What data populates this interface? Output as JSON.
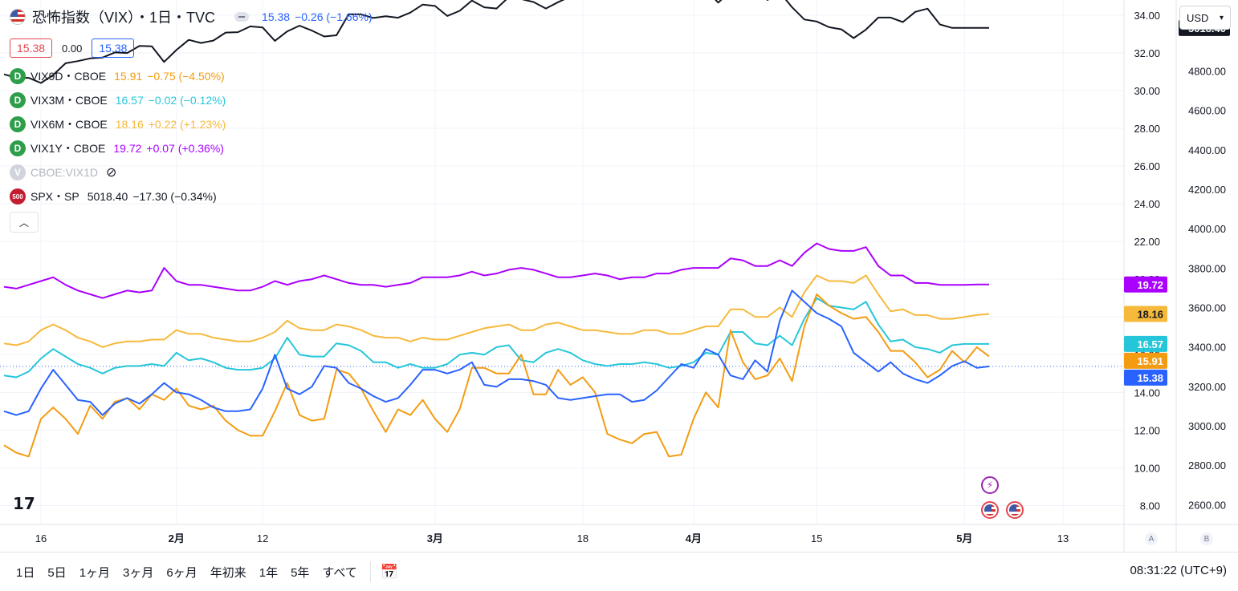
{
  "header": {
    "title": "恐怖指数（VIX）・1日・TVC",
    "price": "15.38",
    "change": "−0.26 (−1.66%)",
    "bid": "15.38",
    "spread": "0.00",
    "ask": "15.38"
  },
  "legend": [
    {
      "symbol": "VIX9D・CBOE",
      "value": "15.91",
      "change": "−0.75 (−4.50%)",
      "color": "#f39c12",
      "icon": "D"
    },
    {
      "symbol": "VIX3M・CBOE",
      "value": "16.57",
      "change": "−0.02 (−0.12%)",
      "color": "#26c6da",
      "icon": "D"
    },
    {
      "symbol": "VIX6M・CBOE",
      "value": "18.16",
      "change": "+0.22 (+1.23%)",
      "color": "#f6b93b",
      "icon": "D"
    },
    {
      "symbol": "VIX1Y・CBOE",
      "value": "19.72",
      "change": "+0.07 (+0.36%)",
      "color": "#aa00ff",
      "icon": "D"
    },
    {
      "symbol": "CBOE:VIX1D",
      "value": "",
      "change": "",
      "color": "#b2b5be",
      "icon": "V"
    },
    {
      "symbol": "SPX・SP",
      "value": "5018.40",
      "change": "−17.30 (−0.34%)",
      "color": "#131722",
      "icon": "500"
    }
  ],
  "currency": "USD",
  "colors": {
    "vix": "#2962ff",
    "vix9d": "#f39c12",
    "vix3m": "#26c6da",
    "vix6m": "#f6b93b",
    "vix1y": "#aa00ff",
    "spx": "#131722"
  },
  "chart_data": {
    "type": "line",
    "x": [
      "1/12",
      "1/15",
      "1/16",
      "1/17",
      "1/18",
      "1/19",
      "1/22",
      "1/23",
      "1/24",
      "1/25",
      "1/26",
      "1/29",
      "1/30",
      "1/31",
      "2/1",
      "2/2",
      "2/5",
      "2/6",
      "2/7",
      "2/8",
      "2/9",
      "2/12",
      "2/13",
      "2/14",
      "2/15",
      "2/16",
      "2/19",
      "2/20",
      "2/21",
      "2/22",
      "2/23",
      "2/26",
      "2/27",
      "2/28",
      "2/29",
      "3/1",
      "3/4",
      "3/5",
      "3/6",
      "3/7",
      "3/8",
      "3/11",
      "3/12",
      "3/13",
      "3/14",
      "3/15",
      "3/18",
      "3/19",
      "3/20",
      "3/21",
      "3/22",
      "3/25",
      "3/26",
      "3/27",
      "3/28",
      "3/29",
      "4/1",
      "4/2",
      "4/3",
      "4/4",
      "4/5",
      "4/8",
      "4/9",
      "4/10",
      "4/11",
      "4/12",
      "4/15",
      "4/16",
      "4/17",
      "4/18",
      "4/19",
      "4/22",
      "4/23",
      "4/24",
      "4/25",
      "4/26",
      "4/29",
      "4/30",
      "5/1",
      "5/2",
      "5/3"
    ],
    "x_ticks": [
      "16",
      "2月",
      "12",
      "3月",
      "18",
      "4月",
      "15",
      "5月",
      "13"
    ],
    "y_left_ticks": [
      "8.00",
      "10.00",
      "12.00",
      "14.00",
      "16.00",
      "18.00",
      "20.00",
      "22.00",
      "24.00",
      "26.00",
      "28.00",
      "30.00",
      "32.00",
      "34.00"
    ],
    "y_left_range": [
      7.0,
      34.8
    ],
    "y_right_ticks": [
      "2600.00",
      "2800.00",
      "3000.00",
      "3200.00",
      "3400.00",
      "3600.00",
      "3800.00",
      "4000.00",
      "4200.00",
      "4400.00",
      "4600.00",
      "4800.00",
      "5000.00"
    ],
    "y_right_range": [
      2500,
      5160
    ],
    "series": [
      {
        "name": "VIX",
        "color": "#2962ff",
        "axis": "left",
        "last_label": "15.38",
        "values": [
          13.0,
          12.8,
          13.0,
          14.2,
          15.2,
          14.4,
          13.6,
          13.5,
          12.8,
          13.4,
          13.7,
          13.4,
          13.9,
          14.5,
          14.0,
          13.9,
          13.6,
          13.2,
          13.0,
          13.0,
          13.1,
          14.2,
          16.0,
          14.2,
          13.9,
          14.3,
          15.4,
          15.3,
          14.5,
          14.2,
          13.8,
          13.5,
          13.7,
          14.4,
          15.2,
          15.2,
          15.0,
          15.2,
          15.6,
          14.4,
          14.3,
          14.7,
          14.7,
          14.6,
          14.4,
          13.7,
          13.6,
          13.7,
          13.8,
          13.9,
          13.9,
          13.5,
          13.6,
          14.1,
          14.8,
          15.5,
          15.3,
          16.3,
          16.0,
          14.9,
          14.7,
          15.7,
          15.1,
          17.8,
          19.4,
          18.8,
          18.2,
          17.9,
          17.5,
          16.1,
          15.6,
          15.1,
          15.6,
          15.0,
          14.7,
          14.5,
          14.9,
          15.4,
          15.65,
          15.3,
          15.38
        ]
      },
      {
        "name": "VIX9D",
        "color": "#f39c12",
        "axis": "left",
        "last_label": "15.91",
        "values": [
          11.2,
          10.8,
          10.6,
          12.6,
          13.2,
          12.6,
          11.8,
          13.3,
          12.6,
          13.5,
          13.7,
          13.1,
          13.9,
          13.6,
          14.2,
          13.3,
          13.1,
          13.3,
          12.5,
          12.0,
          11.7,
          11.7,
          13.0,
          14.5,
          12.8,
          12.5,
          12.6,
          15.2,
          15.0,
          14.2,
          13.0,
          11.9,
          13.1,
          12.8,
          13.6,
          12.6,
          11.9,
          13.1,
          15.3,
          15.3,
          15.0,
          15.0,
          16.0,
          13.9,
          13.9,
          15.2,
          14.4,
          14.8,
          14.0,
          11.8,
          11.5,
          11.3,
          11.8,
          11.9,
          10.6,
          10.7,
          12.6,
          14.0,
          13.2,
          17.3,
          15.6,
          14.7,
          14.9,
          15.8,
          14.6,
          17.5,
          19.2,
          18.6,
          18.2,
          17.9,
          18.0,
          17.2,
          16.2,
          16.2,
          15.6,
          14.8,
          15.2,
          16.2,
          15.6,
          16.4,
          15.91
        ]
      },
      {
        "name": "VIX3M",
        "color": "#26c6da",
        "axis": "left",
        "last_label": "16.57",
        "values": [
          14.9,
          14.8,
          15.1,
          15.8,
          16.3,
          15.9,
          15.5,
          15.3,
          15.0,
          15.3,
          15.4,
          15.4,
          15.5,
          15.4,
          16.1,
          15.7,
          15.8,
          15.6,
          15.3,
          15.2,
          15.2,
          15.3,
          15.8,
          16.9,
          16.0,
          15.9,
          15.9,
          16.6,
          16.5,
          16.2,
          15.6,
          15.6,
          15.3,
          15.5,
          15.3,
          15.3,
          15.5,
          16.0,
          16.1,
          16.0,
          16.4,
          16.5,
          15.7,
          15.6,
          16.1,
          16.3,
          16.1,
          15.7,
          15.5,
          15.4,
          15.5,
          15.5,
          15.6,
          15.5,
          15.3,
          15.4,
          15.6,
          16.1,
          16.0,
          17.2,
          17.2,
          16.6,
          16.5,
          17.0,
          16.5,
          17.9,
          19.0,
          18.6,
          18.5,
          18.4,
          18.8,
          17.6,
          16.7,
          16.8,
          16.4,
          16.3,
          16.1,
          16.5,
          16.57,
          16.57,
          16.57
        ]
      },
      {
        "name": "VIX6M",
        "color": "#f6b93b",
        "axis": "left",
        "last_label": "18.16",
        "values": [
          16.6,
          16.5,
          16.7,
          17.3,
          17.6,
          17.3,
          16.9,
          16.7,
          16.4,
          16.6,
          16.7,
          16.7,
          16.8,
          16.8,
          17.3,
          17.1,
          17.1,
          16.9,
          16.8,
          16.7,
          16.7,
          16.9,
          17.2,
          17.8,
          17.4,
          17.3,
          17.3,
          17.6,
          17.5,
          17.3,
          17.0,
          16.9,
          16.9,
          16.7,
          16.9,
          16.8,
          16.8,
          17.0,
          17.2,
          17.4,
          17.5,
          17.6,
          17.3,
          17.3,
          17.6,
          17.7,
          17.5,
          17.3,
          17.3,
          17.2,
          17.1,
          17.1,
          17.3,
          17.3,
          17.1,
          17.1,
          17.3,
          17.5,
          17.5,
          18.4,
          18.4,
          18.0,
          18.0,
          18.5,
          18.0,
          19.3,
          20.2,
          19.9,
          19.9,
          19.8,
          20.2,
          19.2,
          18.3,
          18.4,
          18.1,
          18.1,
          17.9,
          17.9,
          18.0,
          18.1,
          18.16
        ]
      },
      {
        "name": "VIX1Y",
        "color": "#aa00ff",
        "axis": "left",
        "last_label": "19.72",
        "values": [
          19.6,
          19.5,
          19.7,
          19.9,
          20.1,
          19.7,
          19.4,
          19.2,
          19.0,
          19.2,
          19.4,
          19.3,
          19.4,
          20.6,
          19.9,
          19.7,
          19.7,
          19.6,
          19.5,
          19.4,
          19.4,
          19.6,
          19.9,
          19.7,
          19.9,
          20.0,
          20.2,
          20.0,
          19.8,
          19.7,
          19.7,
          19.6,
          19.7,
          19.8,
          20.1,
          20.1,
          20.1,
          20.2,
          20.4,
          20.2,
          20.3,
          20.5,
          20.6,
          20.5,
          20.3,
          20.1,
          20.1,
          20.2,
          20.3,
          20.2,
          20.0,
          20.1,
          20.1,
          20.3,
          20.3,
          20.5,
          20.6,
          20.6,
          20.6,
          21.1,
          21.0,
          20.7,
          20.7,
          21.0,
          20.7,
          21.4,
          21.9,
          21.6,
          21.5,
          21.5,
          21.7,
          20.7,
          20.2,
          20.2,
          19.8,
          19.8,
          19.7,
          19.7,
          19.7,
          19.72,
          19.72
        ]
      },
      {
        "name": "SPX",
        "color": "#131722",
        "axis": "right",
        "last_label": "5018.40",
        "values": [
          4783,
          4766,
          4765,
          4739,
          4780,
          4839,
          4850,
          4864,
          4868,
          4894,
          4891,
          4927,
          4925,
          4846,
          4906,
          4958,
          4942,
          4954,
          4995,
          4997,
          5026,
          5021,
          4953,
          5001,
          5030,
          5005,
          4975,
          4981,
          5088,
          5087,
          5069,
          5078,
          5070,
          5096,
          5137,
          5130,
          5079,
          5105,
          5157,
          5123,
          5117,
          5175,
          5165,
          5150,
          5117,
          5149,
          5178,
          5224,
          5241,
          5234,
          5218,
          5203,
          5248,
          5254,
          5254,
          5243,
          5205,
          5211,
          5147,
          5204,
          5199,
          5210,
          5160,
          5199,
          5123,
          5061,
          5051,
          5022,
          5011,
          4967,
          5010,
          5071,
          5071,
          5048,
          5100,
          5116,
          5036,
          5018.4,
          5018.4,
          5018.4,
          5018.4
        ]
      }
    ]
  },
  "ranges": [
    "1日",
    "5日",
    "1ヶ月",
    "3ヶ月",
    "6ヶ月",
    "年初来",
    "1年",
    "5年",
    "すべて"
  ],
  "clock": "08:31:22 (UTC+9)",
  "scale_buttons": [
    "A",
    "B"
  ],
  "logo": "17"
}
